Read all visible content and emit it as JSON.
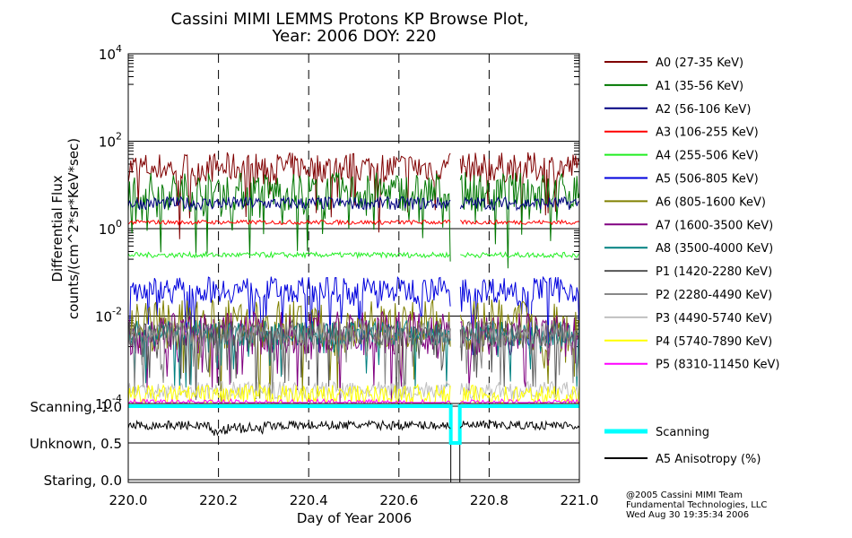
{
  "chart_data": {
    "type": "line",
    "title": "Cassini MIMI LEMMS Protons KP Browse Plot,",
    "subtitle": "Year: 2006 DOY: 220",
    "xlabel": "Day of Year 2006",
    "ylabel_line1": "Differential Flux",
    "ylabel_line2": "counts/(cm^2*sr*KeV*sec)",
    "xlim": [
      220.0,
      221.0
    ],
    "ylim_log10": [
      -4,
      4
    ],
    "x_ticks": [
      "220.0",
      "220.2",
      "220.4",
      "220.6",
      "220.8",
      "221.0"
    ],
    "x_tick_values": [
      220.0,
      220.2,
      220.4,
      220.6,
      220.8,
      221.0
    ],
    "y_ticks": [
      {
        "base": "10",
        "exp": "4",
        "log10": 4
      },
      {
        "base": "10",
        "exp": "2",
        "log10": 2
      },
      {
        "base": "10",
        "exp": "0",
        "log10": 0
      },
      {
        "base": "10",
        "exp": "-2",
        "log10": -2
      },
      {
        "base": "10",
        "exp": "-4",
        "log10": -4
      }
    ],
    "data_gap": [
      220.715,
      220.735
    ],
    "series": [
      {
        "name": "A0 (27-35 KeV)",
        "color": "#800000",
        "level": 25,
        "spread": 0.35
      },
      {
        "name": "A1 (35-56 KeV)",
        "color": "#007700",
        "level": 7,
        "spread": 0.45
      },
      {
        "name": "A2 (56-106 KeV)",
        "color": "#000080",
        "level": 3.8,
        "spread": 0.15
      },
      {
        "name": "A3 (106-255 KeV)",
        "color": "#ff0000",
        "level": 1.4,
        "spread": 0.05
      },
      {
        "name": "A4 (255-506 KeV)",
        "color": "#22ee22",
        "level": 0.25,
        "spread": 0.06
      },
      {
        "name": "A5 (506-805 KeV)",
        "color": "#0000dd",
        "level": 0.04,
        "spread": 0.3
      },
      {
        "name": "A6 (805-1600 KeV)",
        "color": "#808000",
        "level": 0.006,
        "spread": 0.6
      },
      {
        "name": "A7 (1600-3500 KeV)",
        "color": "#800080",
        "level": 0.004,
        "spread": 0.5
      },
      {
        "name": "A8 (3500-4000 KeV)",
        "color": "#008080",
        "level": 0.004,
        "spread": 0.3
      },
      {
        "name": "P1 (1420-2280 KeV)",
        "color": "#555555",
        "level": 0.004,
        "spread": 0.3
      },
      {
        "name": "P2 (2280-4490 KeV)",
        "color": "#888888",
        "level": 0.004,
        "spread": 0.3
      },
      {
        "name": "P3 (4490-5740 KeV)",
        "color": "#c0c0c0",
        "level": 0.0002,
        "spread": 0.2
      },
      {
        "name": "P4 (5740-7890 KeV)",
        "color": "#ffff00",
        "level": 0.00015,
        "spread": 0.25
      },
      {
        "name": "P5 (8310-11450 KeV)",
        "color": "#ff00ff",
        "level": 0.0001,
        "spread": 0.1
      }
    ],
    "lower_panel": {
      "ylim": [
        0.0,
        1.0
      ],
      "y_ticks": [
        {
          "label": "Scanning, 1.0",
          "value": 1.0
        },
        {
          "label": "Unknown, 0.5",
          "value": 0.5
        },
        {
          "label": "Staring, 0.0",
          "value": 0.0
        }
      ],
      "series": [
        {
          "name": "Scanning",
          "color": "#00ffff",
          "value": 1.0,
          "dip_to": 0.5,
          "dip_range": [
            220.715,
            220.735
          ]
        },
        {
          "name": "A5 Anisotropy (%)",
          "color": "#000000",
          "mean": 0.74,
          "spread": 0.06
        }
      ]
    },
    "credit": [
      "@2005 Cassini MIMI Team",
      "Fundamental Technologies, LLC",
      "Wed Aug 30 19:35:34 2006"
    ]
  }
}
